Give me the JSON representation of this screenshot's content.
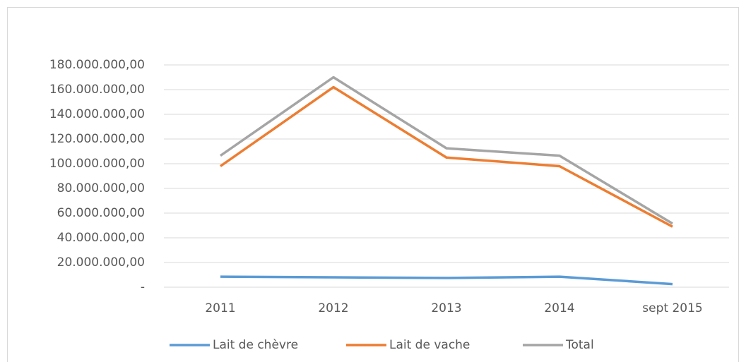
{
  "chart_data": {
    "type": "line",
    "categories": [
      "2011",
      "2012",
      "2013",
      "2014",
      "sept 2015"
    ],
    "series": [
      {
        "name": "Lait de chèvre",
        "color": "#5b9bd5",
        "values": [
          8500000,
          8000000,
          7500000,
          8500000,
          2500000
        ]
      },
      {
        "name": "Lait de vache",
        "color": "#ed7d31",
        "values": [
          98000000,
          162000000,
          105000000,
          98000000,
          49000000
        ]
      },
      {
        "name": "Total",
        "color": "#a5a5a5",
        "values": [
          106500000,
          170000000,
          112500000,
          106500000,
          51500000
        ]
      }
    ],
    "ylim": [
      0,
      180000000
    ],
    "yticks": [
      {
        "value": 0,
        "label": "-"
      },
      {
        "value": 20000000,
        "label": "20.000.000,00"
      },
      {
        "value": 40000000,
        "label": "40.000.000,00"
      },
      {
        "value": 60000000,
        "label": "60.000.000,00"
      },
      {
        "value": 80000000,
        "label": "80.000.000,00"
      },
      {
        "value": 100000000,
        "label": "100.000.000,00"
      },
      {
        "value": 120000000,
        "label": "120.000.000,00"
      },
      {
        "value": 140000000,
        "label": "140.000.000,00"
      },
      {
        "value": 160000000,
        "label": "160.000.000,00"
      },
      {
        "value": 180000000,
        "label": "180.000.000,00"
      }
    ],
    "grid": true,
    "legend": "bottom"
  }
}
